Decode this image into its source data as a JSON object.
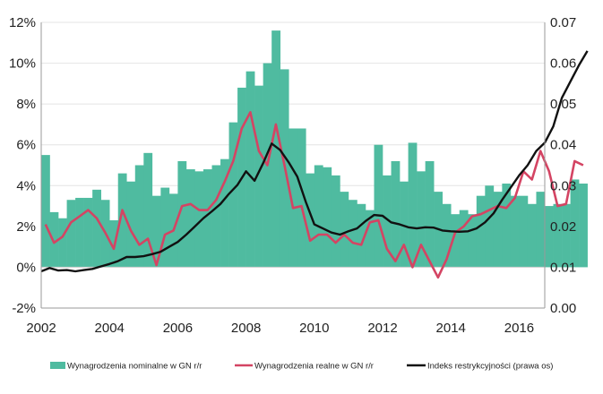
{
  "chart_data": {
    "type": "bar",
    "x_start": 2002.0,
    "x_step": 0.25,
    "xlim": [
      2002.0,
      2016.75
    ],
    "xticks": [
      "2002",
      "2004",
      "2006",
      "2008",
      "2010",
      "2012",
      "2014",
      "2016"
    ],
    "xtick_values": [
      2002,
      2004,
      2006,
      2008,
      2010,
      2012,
      2014,
      2016
    ],
    "ylim_left": [
      -2,
      12
    ],
    "yticks_left": [
      "-2%",
      "0%",
      "2%",
      "4%",
      "6%",
      "8%",
      "10%",
      "12%"
    ],
    "ytick_values_left": [
      -2,
      0,
      2,
      4,
      6,
      8,
      10,
      12
    ],
    "ylim_right": [
      0.0,
      0.07
    ],
    "yticks_right": [
      "0.00",
      "0.01",
      "0.02",
      "0.03",
      "0.04",
      "0.05",
      "0.06",
      "0.07"
    ],
    "ytick_values_right": [
      0.0,
      0.01,
      0.02,
      0.03,
      0.04,
      0.05,
      0.06,
      0.07
    ],
    "grid": true,
    "legend_position": "bottom",
    "series": [
      {
        "name": "Wynagrodzenia nominalne w GN r/r",
        "type": "bar",
        "axis": "left",
        "color": "#4fbba0",
        "values": [
          5.5,
          2.7,
          2.4,
          3.3,
          3.4,
          3.4,
          3.8,
          3.3,
          2.3,
          4.6,
          4.2,
          5.0,
          5.6,
          3.5,
          3.9,
          3.6,
          5.2,
          4.8,
          4.7,
          4.8,
          5.0,
          5.3,
          7.1,
          8.8,
          9.6,
          8.9,
          10.0,
          11.6,
          9.7,
          6.8,
          6.8,
          4.6,
          5.0,
          4.9,
          4.5,
          3.7,
          3.3,
          3.1,
          2.8,
          6.0,
          4.5,
          5.2,
          4.2,
          6.1,
          4.7,
          5.2,
          3.7,
          3.1,
          2.6,
          2.8,
          2.6,
          3.5,
          4.0,
          3.7,
          4.1,
          3.5,
          3.5,
          3.1,
          3.7,
          3.0,
          3.1,
          3.1,
          4.3,
          4.1
        ]
      },
      {
        "name": "Wynagrodzenia realne w GN r/r",
        "type": "line",
        "axis": "left",
        "color": "#d44463",
        "values": [
          2.1,
          1.2,
          1.5,
          2.2,
          2.5,
          2.8,
          2.4,
          1.7,
          0.9,
          2.8,
          1.8,
          1.1,
          1.4,
          0.1,
          1.6,
          1.8,
          3.0,
          3.1,
          2.8,
          2.8,
          3.3,
          4.2,
          5.2,
          6.8,
          7.6,
          5.7,
          5.0,
          7.0,
          5.0,
          2.9,
          3.0,
          1.3,
          1.6,
          1.6,
          1.2,
          1.6,
          1.2,
          1.1,
          2.2,
          2.3,
          0.9,
          0.3,
          1.1,
          0.0,
          1.1,
          0.3,
          -0.5,
          0.4,
          1.7,
          2.0,
          2.5,
          2.6,
          2.8,
          3.0,
          2.9,
          3.4,
          4.7,
          4.3,
          5.7,
          4.7,
          3.0,
          3.1,
          5.2,
          5.0
        ]
      },
      {
        "name": "Indeks restrykcyjności (prawa os)",
        "type": "line",
        "axis": "right",
        "color": "#111111",
        "values": [
          0.009,
          0.0098,
          0.0092,
          0.0093,
          0.009,
          0.0093,
          0.0096,
          0.0102,
          0.0108,
          0.0115,
          0.0125,
          0.0125,
          0.0127,
          0.0132,
          0.0138,
          0.015,
          0.0162,
          0.018,
          0.02,
          0.022,
          0.0237,
          0.0255,
          0.028,
          0.0302,
          0.0335,
          0.0312,
          0.0355,
          0.0403,
          0.0387,
          0.0357,
          0.0322,
          0.026,
          0.0205,
          0.0195,
          0.0185,
          0.018,
          0.0188,
          0.0195,
          0.0213,
          0.0228,
          0.0226,
          0.021,
          0.0205,
          0.0198,
          0.0195,
          0.0198,
          0.0197,
          0.019,
          0.0188,
          0.0187,
          0.0188,
          0.0195,
          0.021,
          0.0232,
          0.0265,
          0.0295,
          0.0325,
          0.035,
          0.0385,
          0.0405,
          0.0445,
          0.0515,
          0.0555,
          0.0595,
          0.063
        ]
      }
    ]
  }
}
